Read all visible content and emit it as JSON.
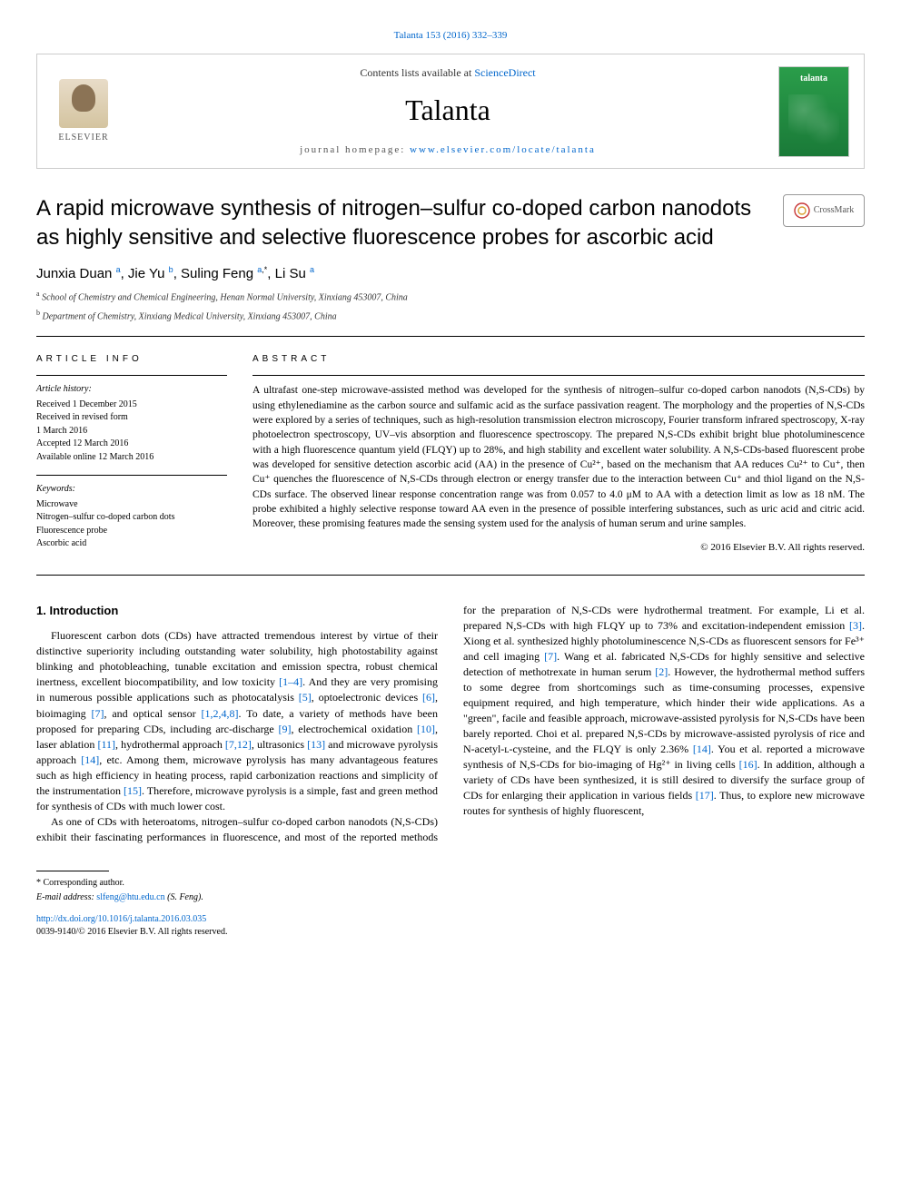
{
  "header": {
    "top_link_text": "Talanta 153 (2016) 332–339",
    "top_link_color": "#0066cc",
    "contents_prefix": "Contents lists available at ",
    "contents_link": "ScienceDirect",
    "journal_name": "Talanta",
    "homepage_label": "journal homepage: ",
    "homepage_url": "www.elsevier.com/locate/talanta",
    "elsevier_label": "ELSEVIER",
    "cover_label": "talanta",
    "cover_bg_top": "#2a9d4a",
    "cover_bg_bottom": "#1a7a38"
  },
  "crossmark": {
    "label": "CrossMark"
  },
  "title": "A rapid microwave synthesis of nitrogen–sulfur co-doped carbon nanodots as highly sensitive and selective fluorescence probes for ascorbic acid",
  "authors_html": "Junxia Duan <sup><a class=\"ref-link\" href=\"#\">a</a></sup>, Jie Yu <sup><a class=\"ref-link\" href=\"#\">b</a></sup>, Suling Feng <sup><a class=\"ref-link\" href=\"#\">a</a>,*</sup>, Li Su <sup><a class=\"ref-link\" href=\"#\">a</a></sup>",
  "affiliations": [
    {
      "sup": "a",
      "text": "School of Chemistry and Chemical Engineering, Henan Normal University, Xinxiang 453007, China"
    },
    {
      "sup": "b",
      "text": "Department of Chemistry, Xinxiang Medical University, Xinxiang 453007, China"
    }
  ],
  "article_info": {
    "heading": "ARTICLE INFO",
    "history_label": "Article history:",
    "history_lines": [
      "Received 1 December 2015",
      "Received in revised form",
      "1 March 2016",
      "Accepted 12 March 2016",
      "Available online 12 March 2016"
    ],
    "keywords_label": "Keywords:",
    "keywords": [
      "Microwave",
      "Nitrogen–sulfur co-doped carbon dots",
      "Fluorescence probe",
      "Ascorbic acid"
    ]
  },
  "abstract": {
    "heading": "ABSTRACT",
    "text": "A ultrafast one-step microwave-assisted method was developed for the synthesis of nitrogen–sulfur co-doped carbon nanodots (N,S-CDs) by using ethylenediamine as the carbon source and sulfamic acid as the surface passivation reagent. The morphology and the properties of N,S-CDs were explored by a series of techniques, such as high-resolution transmission electron microscopy, Fourier transform infrared spectroscopy, X-ray photoelectron spectroscopy, UV–vis absorption and fluorescence spectroscopy. The prepared N,S-CDs exhibit bright blue photoluminescence with a high fluorescence quantum yield (FLQY) up to 28%, and high stability and excellent water solubility. A N,S-CDs-based fluorescent probe was developed for sensitive detection ascorbic acid (AA) in the presence of Cu²⁺, based on the mechanism that AA reduces Cu²⁺ to Cu⁺, then Cu⁺ quenches the fluorescence of N,S-CDs through electron or energy transfer due to the interaction between Cu⁺ and thiol ligand on the N,S-CDs surface. The observed linear response concentration range was from 0.057 to 4.0 μM to AA with a detection limit as low as 18 nM. The probe exhibited a highly selective response toward AA even in the presence of possible interfering substances, such as uric acid and citric acid. Moreover, these promising features made the sensing system used for the analysis of human serum and urine samples.",
    "copyright": "© 2016 Elsevier B.V. All rights reserved."
  },
  "body": {
    "section_title": "1. Introduction",
    "p1_html": "Fluorescent carbon dots (CDs) have attracted tremendous interest by virtue of their distinctive superiority including outstanding water solubility, high photostability against blinking and photobleaching, tunable excitation and emission spectra, robust chemical inertness, excellent biocompatibility, and low toxicity <a class=\"ref-link\" href=\"#\">[1–4]</a>. And they are very promising in numerous possible applications such as photocatalysis <a class=\"ref-link\" href=\"#\">[5]</a>, optoelectronic devices <a class=\"ref-link\" href=\"#\">[6]</a>, bioimaging <a class=\"ref-link\" href=\"#\">[7]</a>, and optical sensor <a class=\"ref-link\" href=\"#\">[1,2,4,8]</a>. To date, a variety of methods have been proposed for preparing CDs, including arc-discharge <a class=\"ref-link\" href=\"#\">[9]</a>, electrochemical oxidation <a class=\"ref-link\" href=\"#\">[10]</a>, laser ablation <a class=\"ref-link\" href=\"#\">[11]</a>, hydrothermal approach <a class=\"ref-link\" href=\"#\">[7,12]</a>, ultrasonics <a class=\"ref-link\" href=\"#\">[13]</a> and microwave pyrolysis approach <a class=\"ref-link\" href=\"#\">[14]</a>, etc. Among them, microwave pyrolysis has many advantageous features such as high efficiency in heating process, rapid carbonization reactions and simplicity of the instrumentation <a class=\"ref-link\" href=\"#\">[15]</a>. Therefore, microwave pyrolysis is a simple, fast and green method for synthesis of CDs with much lower cost.",
    "p2_html": "As one of CDs with heteroatoms, nitrogen–sulfur co-doped carbon nanodots (N,S-CDs) exhibit their fascinating performances in fluorescence, and most of the reported methods for the preparation of N,S-CDs were hydrothermal treatment. For example, Li et al. prepared N,S-CDs with high FLQY up to 73% and excitation-independent emission <a class=\"ref-link\" href=\"#\">[3]</a>. Xiong et al. synthesized highly photoluminescence N,S-CDs as fluorescent sensors for Fe³⁺ and cell imaging <a class=\"ref-link\" href=\"#\">[7]</a>. Wang et al. fabricated N,S-CDs for highly sensitive and selective detection of methotrexate in human serum <a class=\"ref-link\" href=\"#\">[2]</a>. However, the hydrothermal method suffers to some degree from shortcomings such as time-consuming processes, expensive equipment required, and high temperature, which hinder their wide applications. As a \"green\", facile and feasible approach, microwave-assisted pyrolysis for N,S-CDs have been barely reported. Choi et al. prepared N,S-CDs by microwave-assisted pyrolysis of rice and N-acetyl-ʟ-cysteine, and the FLQY is only 2.36% <a class=\"ref-link\" href=\"#\">[14]</a>. You et al. reported a microwave synthesis of N,S-CDs for bio-imaging of Hg²⁺ in living cells <a class=\"ref-link\" href=\"#\">[16]</a>. In addition, although a variety of CDs have been synthesized, it is still desired to diversify the surface group of CDs for enlarging their application in various fields <a class=\"ref-link\" href=\"#\">[17]</a>. Thus, to explore new microwave routes for synthesis of highly fluorescent,"
  },
  "footer": {
    "corresponding_label": "* Corresponding author.",
    "email_label": "E-mail address: ",
    "email_address": "slfeng@htu.edu.cn",
    "email_name": " (S. Feng).",
    "doi_url": "http://dx.doi.org/10.1016/j.talanta.2016.03.035",
    "issn_line": "0039-9140/© 2016 Elsevier B.V. All rights reserved."
  },
  "colors": {
    "link": "#0066cc",
    "text": "#000000",
    "rule": "#000000"
  }
}
